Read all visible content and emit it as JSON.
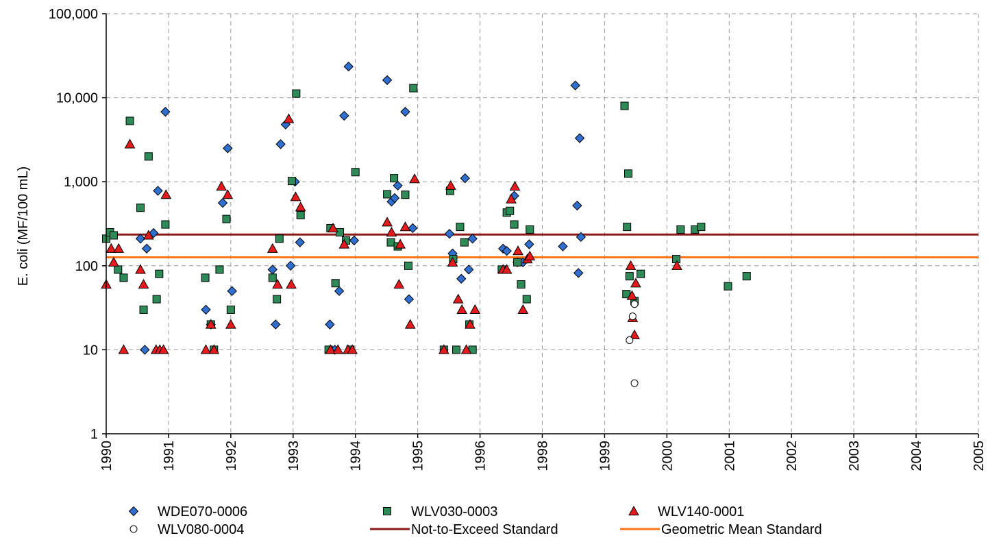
{
  "chart_data": {
    "type": "scatter",
    "title": "",
    "xlabel": "",
    "ylabel": "E. coli (MF/100 mL)",
    "yscale": "log",
    "ylim": [
      1,
      100000
    ],
    "y_ticks": [
      1,
      10,
      100,
      1000,
      10000,
      100000
    ],
    "y_tick_labels": [
      "1",
      "10",
      "100",
      "1,000",
      "10,000",
      "100,000"
    ],
    "x_ticks": [
      "1990",
      "1991",
      "1992",
      "1993",
      "1994",
      "1995",
      "1996",
      "1998",
      "1999",
      "2000",
      "2001",
      "2002",
      "2003",
      "2004",
      "2005"
    ],
    "grid": true,
    "legend_position": "bottom",
    "series": [
      {
        "name": "WDE070-0006",
        "marker": "diamond",
        "color": "#2F6FD0",
        "points": [
          [
            0.55,
            210
          ],
          [
            0.62,
            10
          ],
          [
            0.65,
            160
          ],
          [
            0.76,
            245
          ],
          [
            0.83,
            780
          ],
          [
            0.95,
            6800
          ],
          [
            1.6,
            30
          ],
          [
            1.68,
            20
          ],
          [
            1.87,
            560
          ],
          [
            1.95,
            2500
          ],
          [
            2.02,
            50
          ],
          [
            2.67,
            90
          ],
          [
            2.72,
            20
          ],
          [
            2.8,
            2800
          ],
          [
            2.88,
            4800
          ],
          [
            2.96,
            100
          ],
          [
            3.03,
            1000
          ],
          [
            3.11,
            190
          ],
          [
            3.59,
            20
          ],
          [
            3.67,
            10
          ],
          [
            3.74,
            50
          ],
          [
            3.82,
            6100
          ],
          [
            3.89,
            23500
          ],
          [
            3.98,
            200
          ],
          [
            4.51,
            16200
          ],
          [
            4.58,
            580
          ],
          [
            4.63,
            640
          ],
          [
            4.68,
            900
          ],
          [
            4.8,
            6800
          ],
          [
            4.86,
            40
          ],
          [
            4.92,
            280
          ],
          [
            5.51,
            240
          ],
          [
            5.56,
            140
          ],
          [
            5.7,
            70
          ],
          [
            5.76,
            1100
          ],
          [
            5.82,
            90
          ],
          [
            5.88,
            210
          ],
          [
            6.37,
            160
          ],
          [
            6.43,
            150
          ],
          [
            6.55,
            680
          ],
          [
            6.6,
            110
          ],
          [
            6.69,
            110
          ],
          [
            6.79,
            180
          ],
          [
            7.33,
            170
          ],
          [
            7.53,
            14000
          ],
          [
            7.56,
            520
          ],
          [
            7.6,
            3300
          ],
          [
            7.62,
            220
          ],
          [
            7.58,
            82
          ]
        ]
      },
      {
        "name": "WLV030-0003",
        "marker": "square",
        "color": "#2E8B57",
        "points": [
          [
            0.0,
            210
          ],
          [
            0.06,
            250
          ],
          [
            0.12,
            230
          ],
          [
            0.19,
            90
          ],
          [
            0.28,
            72
          ],
          [
            0.38,
            5300
          ],
          [
            0.55,
            490
          ],
          [
            0.6,
            30
          ],
          [
            0.68,
            2000
          ],
          [
            0.81,
            40
          ],
          [
            0.85,
            80
          ],
          [
            0.95,
            310
          ],
          [
            1.59,
            72
          ],
          [
            1.68,
            20
          ],
          [
            1.73,
            10
          ],
          [
            1.82,
            90
          ],
          [
            1.93,
            360
          ],
          [
            2.0,
            30
          ],
          [
            2.67,
            72
          ],
          [
            2.74,
            40
          ],
          [
            2.78,
            210
          ],
          [
            2.98,
            1020
          ],
          [
            3.05,
            11200
          ],
          [
            3.12,
            400
          ],
          [
            3.57,
            10
          ],
          [
            3.6,
            280
          ],
          [
            3.68,
            62
          ],
          [
            3.75,
            250
          ],
          [
            3.85,
            200
          ],
          [
            3.92,
            10
          ],
          [
            4.0,
            1300
          ],
          [
            4.51,
            710
          ],
          [
            4.57,
            190
          ],
          [
            4.62,
            1100
          ],
          [
            4.68,
            170
          ],
          [
            4.8,
            700
          ],
          [
            4.85,
            100
          ],
          [
            4.93,
            13000
          ],
          [
            5.42,
            10
          ],
          [
            5.52,
            780
          ],
          [
            5.57,
            120
          ],
          [
            5.62,
            10
          ],
          [
            5.68,
            290
          ],
          [
            5.75,
            190
          ],
          [
            5.83,
            20
          ],
          [
            5.88,
            10
          ],
          [
            6.35,
            90
          ],
          [
            6.43,
            430
          ],
          [
            6.48,
            450
          ],
          [
            6.55,
            310
          ],
          [
            6.6,
            110
          ],
          [
            6.66,
            60
          ],
          [
            6.75,
            40
          ],
          [
            6.8,
            270
          ],
          [
            8.32,
            8000
          ],
          [
            8.36,
            290
          ],
          [
            8.38,
            1250
          ],
          [
            8.4,
            75
          ],
          [
            8.35,
            46
          ],
          [
            8.48,
            38
          ],
          [
            8.58,
            80
          ],
          [
            9.15,
            120
          ],
          [
            9.22,
            270
          ],
          [
            9.45,
            270
          ],
          [
            9.55,
            290
          ],
          [
            9.98,
            57
          ],
          [
            10.28,
            75
          ]
        ]
      },
      {
        "name": "WLV140-0001",
        "marker": "triangle",
        "color": "#E41A1C",
        "points": [
          [
            0.0,
            60
          ],
          [
            0.08,
            160
          ],
          [
            0.12,
            110
          ],
          [
            0.2,
            160
          ],
          [
            0.28,
            10
          ],
          [
            0.38,
            2800
          ],
          [
            0.55,
            90
          ],
          [
            0.6,
            60
          ],
          [
            0.68,
            230
          ],
          [
            0.8,
            10
          ],
          [
            0.86,
            10
          ],
          [
            0.92,
            10
          ],
          [
            0.96,
            700
          ],
          [
            1.6,
            10
          ],
          [
            1.68,
            20
          ],
          [
            1.73,
            10
          ],
          [
            1.85,
            880
          ],
          [
            1.95,
            700
          ],
          [
            2.0,
            20
          ],
          [
            2.67,
            160
          ],
          [
            2.75,
            60
          ],
          [
            2.93,
            5600
          ],
          [
            2.97,
            60
          ],
          [
            3.04,
            660
          ],
          [
            3.12,
            500
          ],
          [
            3.6,
            10
          ],
          [
            3.64,
            280
          ],
          [
            3.72,
            10
          ],
          [
            3.82,
            180
          ],
          [
            3.88,
            10
          ],
          [
            3.95,
            10
          ],
          [
            4.51,
            330
          ],
          [
            4.58,
            250
          ],
          [
            4.7,
            60
          ],
          [
            4.72,
            180
          ],
          [
            4.8,
            290
          ],
          [
            4.88,
            20
          ],
          [
            4.95,
            1080
          ],
          [
            5.42,
            10
          ],
          [
            5.53,
            900
          ],
          [
            5.56,
            110
          ],
          [
            5.65,
            40
          ],
          [
            5.71,
            30
          ],
          [
            5.78,
            10
          ],
          [
            5.84,
            20
          ],
          [
            5.92,
            30
          ],
          [
            6.37,
            90
          ],
          [
            6.43,
            90
          ],
          [
            6.5,
            620
          ],
          [
            6.56,
            880
          ],
          [
            6.61,
            150
          ],
          [
            6.69,
            30
          ],
          [
            6.76,
            120
          ],
          [
            6.8,
            130
          ],
          [
            8.42,
            100
          ],
          [
            8.44,
            44
          ],
          [
            8.45,
            24
          ],
          [
            8.48,
            15
          ],
          [
            8.5,
            62
          ],
          [
            9.16,
            100
          ]
        ]
      },
      {
        "name": "WLV080-0004",
        "marker": "circle",
        "color": "#FFFFFF",
        "points": [
          [
            8.4,
            13
          ],
          [
            8.45,
            25
          ],
          [
            8.48,
            35
          ],
          [
            8.48,
            4
          ]
        ]
      }
    ],
    "reference_lines": [
      {
        "name": "Not-to-Exceed Standard",
        "value": 235,
        "color": "#8B1A1A"
      },
      {
        "name": "Geometric Mean Standard",
        "value": 126,
        "color": "#FF7518"
      }
    ]
  }
}
